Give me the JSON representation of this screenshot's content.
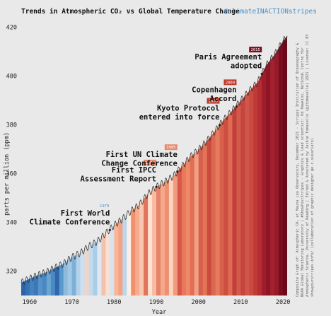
{
  "header": {
    "title": "Trends in Atmospheric CO₂ vs Global Temperature Change",
    "hashtag": "#climateINACTIONstripes"
  },
  "credits": [
    "Composite Graph of: Atmospheric CO₂ at Mauna Loa Observatory, December 2021 - Scripps Institution of Oceanography &",
    "NOAA Global Monitoring Laboratory | #ShowYourStripes - Graphics & lead scientist: Ed Hawkins, National Centre for",
    "Atmospheric Science, University of Reading | Edited & Annotated by Jackie Tomasello (@jtomasello) 2021 | License: CC BY",
    "showyourstripes.info/ (collaboration of graphic designer @e.c.sukariato)"
  ],
  "chart_data": {
    "type": "line",
    "title": "Trends in Atmospheric CO₂ vs Global Temperature Change",
    "xlabel": "Year",
    "ylabel": "parts per million (ppm)",
    "xlim": [
      1958,
      2022
    ],
    "ylim": [
      310,
      423
    ],
    "xticks": [
      1960,
      1970,
      1980,
      1990,
      2000,
      2010,
      2020
    ],
    "yticks": [
      320,
      340,
      360,
      380,
      400,
      420
    ],
    "grid": false,
    "series": [
      {
        "x": [
          1958,
          1960,
          1962,
          1964,
          1966,
          1968,
          1970,
          1972,
          1974,
          1976,
          1978,
          1980,
          1982,
          1984,
          1986,
          1988,
          1990,
          1992,
          1994,
          1996,
          1998,
          2000,
          2002,
          2004,
          2006,
          2008,
          2010,
          2012,
          2014,
          2016,
          2018,
          2020,
          2021
        ],
        "values": [
          315.3,
          316.9,
          318.4,
          319.6,
          321.4,
          323.0,
          325.7,
          327.4,
          330.2,
          332.1,
          335.4,
          338.8,
          341.4,
          344.6,
          347.2,
          351.6,
          354.5,
          356.5,
          358.9,
          362.7,
          366.8,
          369.7,
          373.4,
          377.6,
          382.1,
          385.8,
          389.9,
          393.8,
          397.4,
          404.2,
          408.7,
          414.2,
          416.4
        ]
      }
    ],
    "stripes": {
      "start_year": 1958,
      "colors": [
        "#2c64ab",
        "#3673b5",
        "#4682bd",
        "#3a78b8",
        "#5593c9",
        "#4a88c3",
        "#6aa4d0",
        "#4b8bc4",
        "#2f66ac",
        "#5c99cb",
        "#8ebbdc",
        "#a3c8e3",
        "#7eb1d8",
        "#b4d2e8",
        "#cde0ef",
        "#f0d4c6",
        "#c3dbed",
        "#aacde5",
        "#dfe8f2",
        "#f2c3aa",
        "#fadfd2",
        "#d5e3ef",
        "#f8b598",
        "#f5a284",
        "#bcd6ea",
        "#fdeee5",
        "#f0916c",
        "#f6ac8e",
        "#f9c6af",
        "#e1755a",
        "#fde1d3",
        "#f7bca0",
        "#e6826a",
        "#f5a88b",
        "#ec9070",
        "#fbd3c0",
        "#f19b7d",
        "#d9574a",
        "#e8785a",
        "#ee8866",
        "#e16e55",
        "#f2a084",
        "#d6604d",
        "#e37556",
        "#c94c3f",
        "#dc6750",
        "#e57c61",
        "#d7614b",
        "#cc4f42",
        "#e06b53",
        "#c2403c",
        "#d25a4a",
        "#c5453e",
        "#d0564b",
        "#cb4a40",
        "#be3a36",
        "#b52d32",
        "#9f1c2a",
        "#8e1526",
        "#a3222e",
        "#951a2a",
        "#7a0d1e",
        "#6a0a1b",
        "#8d1326"
      ]
    },
    "events": [
      {
        "year": 1979,
        "ppm": 336.8,
        "lines": [
          "First World",
          "Climate Conference"
        ],
        "tag": "1979"
      },
      {
        "year": 1990,
        "ppm": 354.5,
        "lines": [
          "First IPCC",
          "Assessment Report"
        ],
        "tag": "1990"
      },
      {
        "year": 1995,
        "ppm": 360.8,
        "lines": [
          "First UN Climate",
          "Change Conference"
        ],
        "tag": "1995"
      },
      {
        "year": 2005,
        "ppm": 379.8,
        "lines": [
          "Kyoto Protocol",
          "entered into force"
        ],
        "tag": "2005"
      },
      {
        "year": 2009,
        "ppm": 387.4,
        "lines": [
          "Copenhagen",
          "Accord"
        ],
        "tag": "2009"
      },
      {
        "year": 2015,
        "ppm": 400.8,
        "lines": [
          "Paris Agreement",
          "adopted"
        ],
        "tag": "2015"
      }
    ]
  }
}
